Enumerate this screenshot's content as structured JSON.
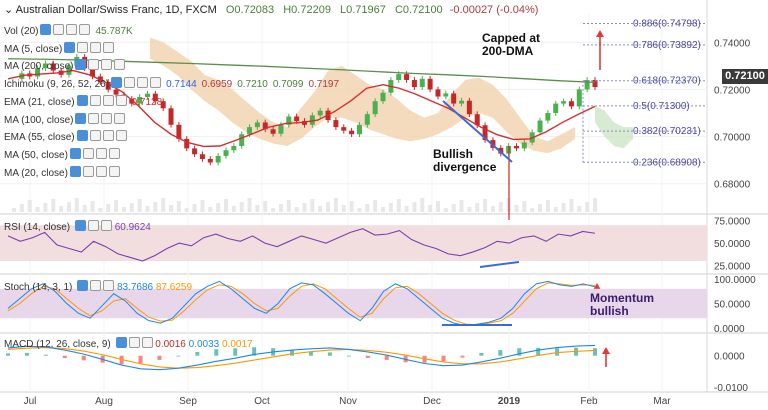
{
  "header": {
    "symbol": "Australian Dollar/Swiss Franc, 1D, FXCM",
    "open": "O0.72083",
    "high": "H0.72209",
    "low": "L0.71967",
    "close": "C0.72100",
    "change": "-0.00027 (-0.04%)"
  },
  "legend": [
    {
      "label": "Vol (20)",
      "values": [
        "45.787K"
      ],
      "colors": [
        "#4a7f3a"
      ]
    },
    {
      "label": "MA (5, close)",
      "values": [],
      "colors": []
    },
    {
      "label": "MA (200, close)",
      "values": [],
      "colors": []
    },
    {
      "label": "Ichimoku (9, 26, 52, 26)",
      "values": [
        "0.7144",
        "0.6959",
        "0.7210",
        "0.7099",
        "0.7197"
      ],
      "colors": [
        "#2962ff",
        "#b23a3a",
        "#4a7f3a",
        "#4a7f3a",
        "#b23a3a"
      ]
    },
    {
      "label": "EMA (21, close)",
      "values": [
        "0.7128"
      ],
      "colors": [
        "#d32f2f"
      ]
    },
    {
      "label": "MA (100, close)",
      "values": [],
      "colors": []
    },
    {
      "label": "EMA (55, close)",
      "values": [],
      "colors": []
    },
    {
      "label": "MA (50, close)",
      "values": [],
      "colors": []
    },
    {
      "label": "MA (20, close)",
      "values": [],
      "colors": []
    }
  ],
  "indicators": {
    "rsi": {
      "label": "RSI (14, close)",
      "value": "60.9624"
    },
    "stoch": {
      "label": "Stoch (14, 3, 1)",
      "k": "83.7686",
      "d": "87.6259"
    },
    "macd": {
      "label": "MACD (12, 26, close, 9)",
      "hist": "0.0016",
      "macd": "0.0033",
      "signal": "0.0017"
    }
  },
  "last_price": "0.72100",
  "annotations": {
    "capped": [
      "Capped at",
      "200-DMA"
    ],
    "bullish_divergence": [
      "Bullish",
      "divergence"
    ],
    "momentum": [
      "Momentum",
      "bullish"
    ]
  },
  "chart_data": {
    "type": "line",
    "x_ticks": [
      "Jul",
      "Aug",
      "Sep",
      "Oct",
      "Nov",
      "Dec",
      "2019",
      "Feb",
      "Mar"
    ],
    "price_axis": [
      "0.74000",
      "0.72000",
      "0.70000",
      "0.68000"
    ],
    "rsi_axis": [
      "75.0000",
      "50.0000",
      "25.0000"
    ],
    "stoch_axis": [
      "100.0000",
      "50.0000",
      "0.0000"
    ],
    "macd_axis": [
      "0.0000",
      "-0.0100"
    ],
    "fibonacci": [
      {
        "label": "0.886(0.74798)",
        "level": 0.74798
      },
      {
        "label": "0.786(0.73892)",
        "level": 0.73892
      },
      {
        "label": "0.618(0.72370)",
        "level": 0.7237
      },
      {
        "label": "0.5(0.71300)",
        "level": 0.713
      },
      {
        "label": "0.382(0.70231)",
        "level": 0.70231
      },
      {
        "label": "0.236(0.68908)",
        "level": 0.68908
      }
    ],
    "price_series": [
      0.7245,
      0.7268,
      0.7255,
      0.729,
      0.731,
      0.728,
      0.7262,
      0.7301,
      0.7338,
      0.729,
      0.7255,
      0.7232,
      0.7199,
      0.7178,
      0.716,
      0.714,
      0.7168,
      0.7182,
      0.715,
      0.712,
      0.705,
      0.699,
      0.695,
      0.6925,
      0.6905,
      0.689,
      0.6918,
      0.6942,
      0.696,
      0.701,
      0.704,
      0.706,
      0.7031,
      0.7012,
      0.705,
      0.7085,
      0.7066,
      0.705,
      0.709,
      0.711,
      0.707,
      0.704,
      0.7025,
      0.701,
      0.705,
      0.7095,
      0.715,
      0.7186,
      0.724,
      0.7265,
      0.724,
      0.721,
      0.7245,
      0.72,
      0.717,
      0.7183,
      0.714,
      0.7152,
      0.7095,
      0.7048,
      0.6985,
      0.6952,
      0.6928,
      0.696,
      0.695,
      0.6975,
      0.7018,
      0.7068,
      0.71,
      0.714,
      0.715,
      0.7128,
      0.72,
      0.724,
      0.721
    ],
    "ma200_series": [
      0.733,
      0.7328,
      0.7325,
      0.732,
      0.7315,
      0.731,
      0.7304,
      0.7298,
      0.7291,
      0.7284,
      0.7276,
      0.7268,
      0.7262,
      0.7255,
      0.7246,
      0.7237,
      0.723
    ],
    "ema21_series": [
      0.7245,
      0.726,
      0.7265,
      0.727,
      0.728,
      0.7262,
      0.723,
      0.719,
      0.713,
      0.706,
      0.701,
      0.6975,
      0.6958,
      0.696,
      0.6985,
      0.7012,
      0.704,
      0.7055,
      0.706,
      0.707,
      0.7105,
      0.715,
      0.7205,
      0.722,
      0.7205,
      0.718,
      0.715,
      0.712,
      0.708,
      0.704,
      0.7008,
      0.6988,
      0.699,
      0.702,
      0.706,
      0.7095,
      0.7128
    ],
    "rsi_series": [
      58,
      52,
      56,
      62,
      48,
      44,
      40,
      52,
      46,
      38,
      34,
      30,
      36,
      44,
      50,
      47,
      56,
      60,
      55,
      52,
      58,
      50,
      46,
      52,
      58,
      54,
      50,
      56,
      62,
      66,
      59,
      60,
      64,
      54,
      48,
      44,
      38,
      36,
      40,
      45,
      52,
      50,
      56,
      58,
      52,
      60,
      58,
      63,
      61
    ],
    "stoch_k": [
      40,
      60,
      80,
      90,
      75,
      50,
      30,
      20,
      45,
      70,
      55,
      30,
      15,
      10,
      20,
      45,
      70,
      85,
      95,
      80,
      60,
      40,
      30,
      50,
      80,
      92,
      88,
      70,
      50,
      30,
      15,
      40,
      75,
      90,
      80,
      60,
      40,
      20,
      10,
      5,
      8,
      12,
      20,
      40,
      70,
      90,
      95,
      88,
      85,
      90,
      84
    ],
    "stoch_d": [
      35,
      50,
      70,
      85,
      80,
      60,
      40,
      25,
      35,
      55,
      60,
      40,
      22,
      14,
      16,
      35,
      58,
      78,
      88,
      85,
      70,
      50,
      35,
      40,
      65,
      85,
      90,
      80,
      60,
      40,
      22,
      30,
      60,
      82,
      85,
      70,
      50,
      30,
      16,
      8,
      7,
      10,
      15,
      30,
      55,
      80,
      92,
      90,
      87,
      88,
      87
    ],
    "macd_line": [
      0.0025,
      0.003,
      0.0028,
      0.0018,
      0.0005,
      -0.0012,
      -0.003,
      -0.0042,
      -0.0045,
      -0.004,
      -0.003,
      -0.0018,
      -0.0008,
      0.0004,
      0.0012,
      0.0018,
      0.0022,
      0.0025,
      0.002,
      0.0012,
      0.0002,
      -0.0012,
      -0.0025,
      -0.0032,
      -0.003,
      -0.002,
      -0.0008,
      0.0006,
      0.0018,
      0.0026,
      0.0031,
      0.0033
    ],
    "macd_signal": [
      0.002,
      0.0024,
      0.0026,
      0.0023,
      0.0015,
      0.0003,
      -0.0012,
      -0.0026,
      -0.0036,
      -0.004,
      -0.0038,
      -0.0032,
      -0.0024,
      -0.0014,
      -0.0004,
      0.0006,
      0.0013,
      0.0018,
      0.002,
      0.0017,
      0.0011,
      0.0002,
      -0.001,
      -0.002,
      -0.0026,
      -0.0026,
      -0.002,
      -0.001,
      0.0001,
      0.001,
      0.0014,
      0.0017
    ],
    "colors": {
      "up": "#4caf50",
      "down": "#c62828",
      "ma200": "#5a8f4a",
      "ema21": "#d32f2f",
      "cloud": "#f1cfa8",
      "fib": "#8a8ac8",
      "arrow": "#e53935",
      "trend": "#3b6bd8",
      "rsi": "#7b3fb0",
      "macd": "#1e88e5",
      "signal": "#ff9800"
    }
  }
}
